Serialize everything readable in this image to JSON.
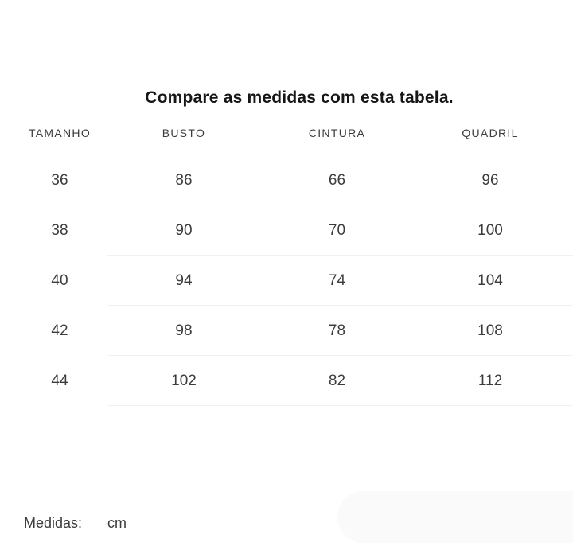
{
  "page": {
    "title": "Compare as medidas com esta tabela."
  },
  "table": {
    "headers": [
      "TAMANHO",
      "BUSTO",
      "CINTURA",
      "QUADRIL"
    ],
    "rows": [
      [
        "36",
        "86",
        "66",
        "96"
      ],
      [
        "38",
        "90",
        "70",
        "100"
      ],
      [
        "40",
        "94",
        "74",
        "104"
      ],
      [
        "42",
        "98",
        "78",
        "108"
      ],
      [
        "44",
        "102",
        "82",
        "112"
      ]
    ]
  },
  "footer": {
    "measures_label": "Medidas:",
    "unit": "cm"
  },
  "colors": {
    "title_text": "#161616",
    "body_text": "#3c3c3c",
    "divider": "#f1f1f1",
    "pill_background": "#fafafa",
    "page_background": "#ffffff"
  }
}
